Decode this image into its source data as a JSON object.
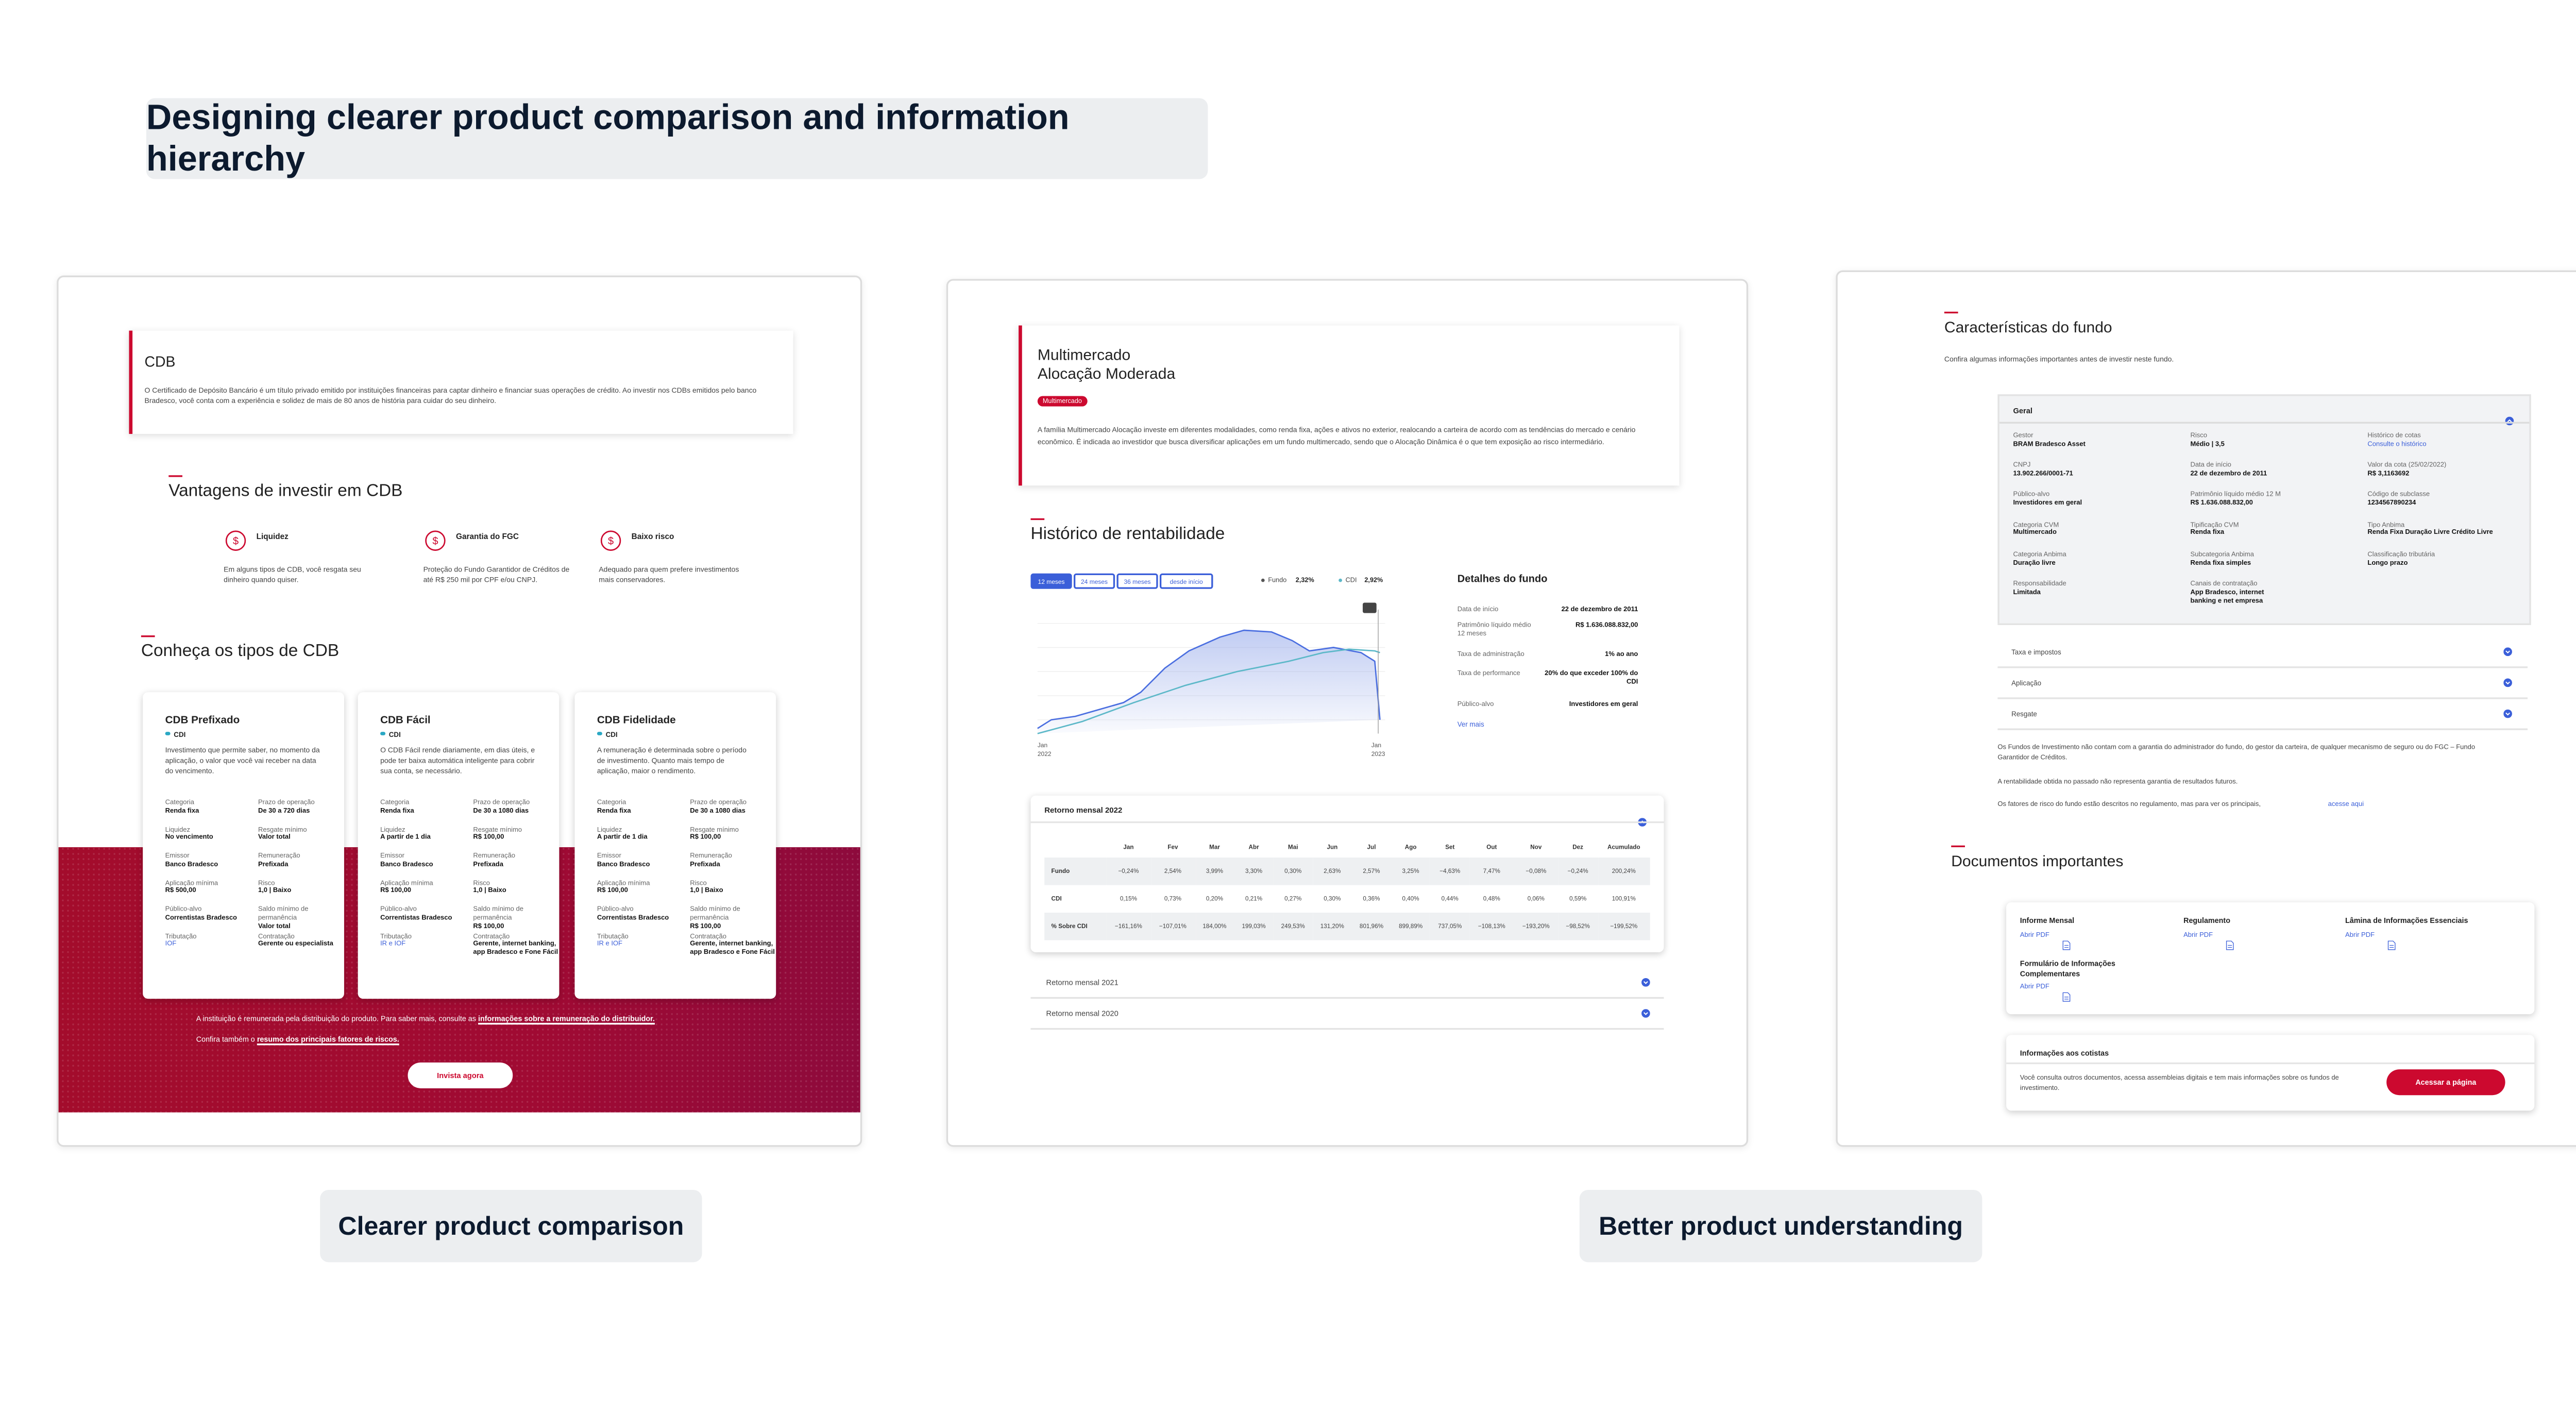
{
  "header": {
    "title": "Designing clearer product comparison and information hierarchy"
  },
  "captions": [
    "Clearer product comparison",
    "Better product understanding"
  ],
  "cdb_page": {
    "title": "CDB",
    "intro": "O Certificado de Depósito Bancário é um título privado emitido por instituições financeiras para captar dinheiro e financiar suas operações de crédito. Ao investir nos CDBs emitidos pelo banco Bradesco, você conta com a experiência e solidez de mais de 80 anos de história para cuidar do seu dinheiro.",
    "advantages_title": "Vantagens de investir em CDB",
    "advantages": [
      {
        "title": "Liquidez",
        "text": "Em alguns tipos de CDB, você resgata seu dinheiro quando quiser."
      },
      {
        "title": "Garantia do FGC",
        "text": "Proteção do Fundo Garantidor de Créditos de até R$ 250 mil por CPF e/ou CNPJ."
      },
      {
        "title": "Baixo risco",
        "text": "Adequado para quem prefere investimentos mais conservadores."
      }
    ],
    "types_title": "Conheça os tipos de CDB",
    "cards": [
      {
        "title": "CDB Prefixado",
        "tag": "CDI",
        "text": "Investimento que permite saber, no momento da aplicação, o valor que você vai receber na data do vencimento.",
        "fields": [
          [
            "Categoria",
            "Renda fixa"
          ],
          [
            "Prazo de operação",
            "De 30 a 720 dias"
          ],
          [
            "Liquidez",
            "No vencimento"
          ],
          [
            "Resgate mínimo",
            "Valor total"
          ],
          [
            "Emissor",
            "Banco Bradesco"
          ],
          [
            "Remuneração",
            "Prefixada"
          ],
          [
            "Aplicação mínima",
            "R$ 500,00"
          ],
          [
            "Risco",
            "1,0 | Baixo"
          ],
          [
            "Público-alvo",
            "Correntistas Bradesco"
          ],
          [
            "Saldo mínimo de permanência",
            "Valor total"
          ],
          [
            "Tributação",
            "IOF"
          ],
          [
            "Contratação",
            "Gerente ou especialista"
          ]
        ]
      },
      {
        "title": "CDB Fácil",
        "tag": "CDI",
        "text": "O CDB Fácil rende diariamente, em dias úteis, e pode ter baixa automática inteligente para cobrir sua conta, se necessário.",
        "fields": [
          [
            "Categoria",
            "Renda fixa"
          ],
          [
            "Prazo de operação",
            "De 30 a 1080 dias"
          ],
          [
            "Liquidez",
            "A partir de 1 dia"
          ],
          [
            "Resgate mínimo",
            "R$ 100,00"
          ],
          [
            "Emissor",
            "Banco Bradesco"
          ],
          [
            "Remuneração",
            "Prefixada"
          ],
          [
            "Aplicação mínima",
            "R$ 100,00"
          ],
          [
            "Risco",
            "1,0 | Baixo"
          ],
          [
            "Público-alvo",
            "Correntistas Bradesco"
          ],
          [
            "Saldo mínimo de permanência",
            "R$ 100,00"
          ],
          [
            "Tributação",
            "IR e IOF"
          ],
          [
            "Contratação",
            "Gerente, internet banking, app Bradesco e Fone Fácil"
          ]
        ]
      },
      {
        "title": "CDB Fidelidade",
        "tag": "CDI",
        "text": "A remuneração é determinada sobre o período de investimento. Quanto mais tempo de aplicação, maior o rendimento.",
        "fields": [
          [
            "Categoria",
            "Renda fixa"
          ],
          [
            "Prazo de operação",
            "De 30 a 1080 dias"
          ],
          [
            "Liquidez",
            "A partir de 1 dia"
          ],
          [
            "Resgate mínimo",
            "R$ 100,00"
          ],
          [
            "Emissor",
            "Banco Bradesco"
          ],
          [
            "Remuneração",
            "Prefixada"
          ],
          [
            "Aplicação mínima",
            "R$ 100,00"
          ],
          [
            "Risco",
            "1,0 | Baixo"
          ],
          [
            "Público-alvo",
            "Correntistas Bradesco"
          ],
          [
            "Saldo mínimo de permanência",
            "R$ 100,00"
          ],
          [
            "Tributação",
            "IR e IOF"
          ],
          [
            "Contratação",
            "Gerente, internet banking, app Bradesco e Fone Fácil"
          ]
        ]
      }
    ],
    "footnotes": [
      {
        "text": "A instituição é remunerada pela distribuição do produto. Para saber mais, consulte as",
        "link": "informações sobre a remuneração do distribuidor."
      },
      {
        "text": "Confira também o",
        "link": "resumo dos principais fatores de riscos."
      }
    ],
    "cta": "Invista agora"
  },
  "fund_page": {
    "title_lines": [
      "Multimercado",
      "Alocação Moderada"
    ],
    "tag": "Multimercado",
    "intro": "A família Multimercado Alocação investe em diferentes modalidades, como renda fixa, ações e ativos no exterior, realocando a carteira de acordo com as tendências do mercado e cenário econômico. É indicada ao investidor que busca diversificar aplicações em um fundo multimercado, sendo que o Alocação Dinâmica é o que tem exposição ao risco intermediário.",
    "history_title": "Histórico de rentabilidade",
    "periods": [
      "12 meses",
      "24 meses",
      "36 meses",
      "desde início"
    ],
    "legend": [
      {
        "name": "Fundo",
        "value": "2,32%"
      },
      {
        "name": "CDI",
        "value": "2,92%"
      }
    ],
    "axis_labels": [
      [
        "Jan",
        "2022"
      ],
      [
        "Jan",
        "2023"
      ]
    ],
    "details_title": "Detalhes do fundo",
    "details": [
      [
        "Data de início",
        "22 de dezembro de 2011"
      ],
      [
        "Patrimônio líquido médio 12 meses",
        "R$ 1.636.088.832,00"
      ],
      [
        "Taxa de administração",
        "1% ao ano"
      ],
      [
        "Taxa de performance",
        "20% do que exceder 100% do CDI"
      ],
      [
        "Público-alvo",
        "Investidores em geral"
      ]
    ],
    "details_link": "Ver mais",
    "table": {
      "title": "Retorno mensal 2022",
      "columns": [
        "Jan",
        "Fev",
        "Mar",
        "Abr",
        "Mai",
        "Jun",
        "Jul",
        "Ago",
        "Set",
        "Out",
        "Nov",
        "Dez",
        "Acumulado"
      ],
      "rows": [
        [
          "Fundo",
          "−0,24%",
          "2,54%",
          "3,99%",
          "3,30%",
          "0,30%",
          "2,63%",
          "2,57%",
          "3,25%",
          "−4,63%",
          "7,47%",
          "−0,08%",
          "−0,24%",
          "200,24%"
        ],
        [
          "CDI",
          "0,15%",
          "0,73%",
          "0,20%",
          "0,21%",
          "0,27%",
          "0,30%",
          "0,36%",
          "0,40%",
          "0,44%",
          "0,48%",
          "0,06%",
          "0,59%",
          "100,91%"
        ],
        [
          "% Sobre CDI",
          "−161,16%",
          "−107,01%",
          "184,00%",
          "199,03%",
          "249,53%",
          "131,20%",
          "801,96%",
          "899,89%",
          "737,05%",
          "−108,13%",
          "−193,20%",
          "−98,52%",
          "−199,52%"
        ]
      ]
    },
    "other_years": [
      "Retorno mensal 2021",
      "Retorno mensal 2020"
    ]
  },
  "details_page": {
    "title": "Características do fundo",
    "subtitle": "Confira algumas informações importantes antes de investir neste fundo.",
    "general_title": "Geral",
    "general": [
      [
        "Gestor",
        "BRAM Bradesco Asset"
      ],
      [
        "Risco",
        "Médio | 3,5"
      ],
      [
        "Histórico de cotas",
        "Consulte o histórico"
      ],
      [
        "CNPJ",
        "13.902.266/0001-71"
      ],
      [
        "Data de início",
        "22 de dezembro de 2011"
      ],
      [
        "Valor da cota (25/02/2022)",
        "R$ 3,1163692"
      ],
      [
        "Público-alvo",
        "Investidores em geral"
      ],
      [
        "Patrimônio líquido médio 12 M",
        "R$ 1.636.088.832,00"
      ],
      [
        "Código de subclasse",
        "1234567890234"
      ],
      [
        "Categoria CVM",
        "Multimercado"
      ],
      [
        "Tipificação CVM",
        "Renda fixa"
      ],
      [
        "Tipo Anbima",
        "Renda Fixa Duração Livre Crédito Livre"
      ],
      [
        "Categoria Anbima",
        "Duração livre"
      ],
      [
        "Subcategoria Anbima",
        "Renda fixa simples"
      ],
      [
        "Classificação tributária",
        "Longo prazo"
      ],
      [
        "Responsabilidade",
        "Limitada"
      ],
      [
        "Canais de contratação",
        "App Bradesco, internet banking e net empresa"
      ]
    ],
    "accordions": [
      "Taxa e impostos",
      "Aplicação",
      "Resgate"
    ],
    "notes": [
      "Os Fundos de Investimento não contam com a garantia do administrador do fundo, do gestor da carteira, de qualquer mecanismo de seguro ou do FGC – Fundo Garantidor de Créditos.",
      "A rentabilidade obtida no passado não representa garantia de resultados futuros.",
      "Os fatores de risco do fundo estão descritos no regulamento, mas para ver os principais,"
    ],
    "notes_link": "acesse aqui",
    "documents_title": "Documentos importantes",
    "documents": [
      "Informe Mensal",
      "Regulamento",
      "Lâmina de Informações Essenciais",
      "Formulário de Informações Complementares"
    ],
    "open_pdf": "Abrir PDF",
    "holders_title": "Informações aos cotistas",
    "holders_text": "Você consulta outros documentos, acessa assembleias digitais e tem mais informações sobre os fundos de investimento.",
    "holders_cta": "Acessar a página"
  }
}
